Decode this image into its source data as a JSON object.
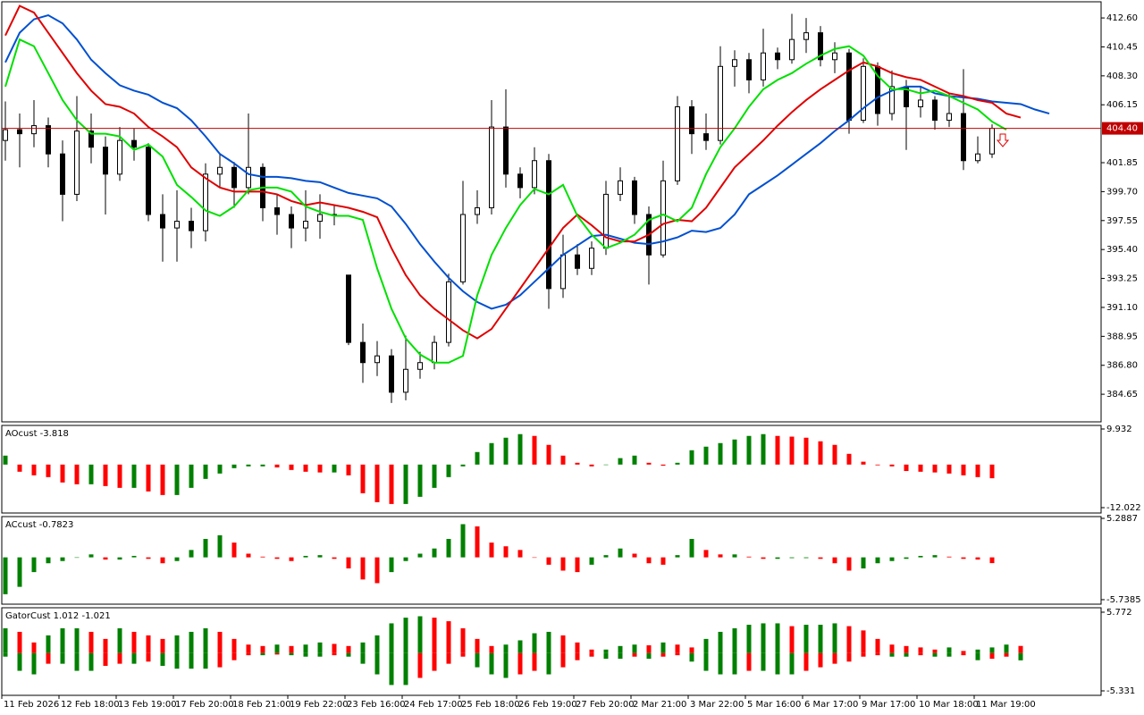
{
  "chart_data": [
    {
      "type": "candlestick",
      "open": [
        403.5,
        404.3,
        404,
        404.6,
        402.5,
        399.5,
        404.2,
        403,
        401,
        403.5,
        403,
        398,
        397,
        397.5,
        396.8,
        401,
        401.5,
        400,
        401.5,
        398.5,
        398,
        397,
        397.5,
        398,
        393.5,
        388.5,
        387,
        387.5,
        384.8,
        386.5,
        387,
        388.5,
        393,
        398,
        398.5,
        404.5,
        401,
        400,
        402,
        392.5,
        395,
        394,
        395.5,
        399.5,
        400.5,
        398,
        395,
        400.5,
        406,
        404,
        403.5,
        409,
        409.5,
        408,
        410,
        409.5,
        411,
        411.5,
        409.5,
        410,
        405,
        409,
        405.5,
        407.5,
        406,
        406.5,
        405,
        405.5,
        402,
        402.5
      ],
      "high": [
        406.4,
        405.5,
        406.5,
        405.2,
        403.5,
        406.8,
        405.5,
        403.8,
        404.5,
        404.4,
        403.3,
        399.5,
        399.8,
        398.5,
        401.8,
        402.5,
        401.9,
        405.5,
        401.8,
        399.5,
        398.6,
        399.8,
        399.5,
        398.7,
        393.5,
        389.9,
        388.6,
        388,
        389,
        387.8,
        389,
        393.6,
        400.5,
        399.8,
        406.5,
        407.3,
        401.5,
        403,
        402.5,
        396.5,
        395.8,
        396,
        400.5,
        401.5,
        400.8,
        398.6,
        402,
        406.8,
        406.5,
        405.5,
        410.5,
        410.2,
        410,
        411.8,
        410.4,
        412.9,
        412.6,
        412,
        410.8,
        410.3,
        409.6,
        409.3,
        408.7,
        408,
        407.5,
        406.8,
        407,
        408.8,
        403.8,
        404.7
      ],
      "low": [
        402,
        401.5,
        403,
        401.5,
        397.5,
        399,
        401.8,
        398,
        400.5,
        402,
        397.5,
        394.5,
        394.5,
        395.5,
        396,
        400,
        398.5,
        399.5,
        397.5,
        396.5,
        395.5,
        396,
        396.2,
        397.2,
        388.3,
        385.5,
        386,
        384,
        384.2,
        385.8,
        386.5,
        388.2,
        392.8,
        397.3,
        398,
        400,
        399.2,
        399.5,
        391,
        391.8,
        393.5,
        393.5,
        395,
        399,
        397.3,
        392.8,
        394.8,
        400.2,
        402.5,
        402.8,
        403.2,
        407.5,
        407,
        407.5,
        408.8,
        409.2,
        410,
        409,
        408.5,
        404,
        404.8,
        404.6,
        405,
        402.8,
        405.2,
        404.3,
        404.5,
        401.3,
        401.8,
        402.2
      ],
      "close": [
        404.3,
        404,
        404.6,
        402.5,
        399.5,
        404.2,
        403,
        401,
        403.5,
        403,
        398,
        397,
        397.5,
        396.8,
        401,
        401.5,
        400,
        401.5,
        398.5,
        398,
        397,
        397.5,
        398,
        398,
        388.5,
        387,
        387.5,
        384.8,
        386.5,
        387,
        388.5,
        393,
        398,
        398.5,
        404.5,
        401,
        400,
        402,
        392.5,
        395,
        394,
        395.5,
        399.5,
        400.5,
        398,
        395,
        400.5,
        406,
        404,
        403.5,
        409,
        409.5,
        408,
        410,
        409.5,
        411,
        411.5,
        409.5,
        410,
        405,
        409,
        405.5,
        407.5,
        406,
        406.5,
        405,
        405.5,
        402,
        402.5,
        404.4
      ],
      "series": [
        {
          "color": "#0050d0",
          "values": [
            409.3,
            411.5,
            412.5,
            412.8,
            412.2,
            411,
            409.5,
            408.5,
            407.6,
            407.2,
            406.9,
            406.3,
            405.9,
            405,
            403.8,
            402.5,
            401.8,
            401,
            400.8,
            400.8,
            400.7,
            400.5,
            400.4,
            400,
            399.6,
            399.4,
            399.2,
            398.6,
            397.3,
            395.8,
            394.5,
            393.3,
            392.3,
            391.5,
            391,
            391.3,
            392,
            393,
            394,
            395,
            395.7,
            396.4,
            396.5,
            396.2,
            395.9,
            395.8,
            396,
            396.3,
            396.8,
            396.7,
            397,
            398,
            399.5,
            400.2,
            400.9,
            401.7,
            402.5,
            403.3,
            404.2,
            405,
            405.9,
            406.7,
            407.2,
            407.5,
            407.5,
            407,
            406.8,
            406.7,
            406.6,
            406.4,
            406.3,
            406.2,
            405.8,
            405.5
          ]
        },
        {
          "color": "#e00000",
          "values": [
            411.3,
            413.5,
            413,
            411.5,
            410,
            408.5,
            407.2,
            406.2,
            406,
            405.5,
            404.5,
            403.8,
            403,
            401.5,
            400.7,
            400,
            399.7,
            399.7,
            399.7,
            399.5,
            399,
            398.7,
            398.9,
            398.7,
            398.5,
            398.2,
            397.8,
            395.5,
            393.5,
            392,
            391,
            390.2,
            389.4,
            388.8,
            389.5,
            391,
            392.5,
            394,
            395.5,
            397,
            398,
            397.2,
            396.3,
            396,
            396,
            396.5,
            397.3,
            397.6,
            397.5,
            398.5,
            400,
            401.5,
            402.5,
            403.5,
            404.6,
            405.6,
            406.5,
            407.3,
            408,
            408.7,
            409.3,
            409,
            408.5,
            408.2,
            408,
            407.5,
            407,
            406.8,
            406.5,
            406.3,
            405.5,
            405.2,
            null,
            null
          ]
        },
        {
          "color": "#00e000",
          "values": [
            407.5,
            411,
            410.5,
            408.5,
            406.5,
            405,
            404,
            404,
            403.8,
            402.8,
            403.2,
            402.3,
            400.2,
            399.3,
            398.3,
            397.9,
            398.6,
            399.8,
            400,
            400,
            399.7,
            398.6,
            398.2,
            397.9,
            397.9,
            397.6,
            394,
            391,
            388.8,
            387.6,
            387,
            387,
            387.5,
            392,
            395,
            397,
            398.7,
            399.9,
            399.5,
            400.2,
            397.9,
            396.5,
            395.5,
            395.9,
            396.5,
            397.6,
            398,
            397.5,
            398.5,
            401,
            403,
            404.4,
            406,
            407.3,
            408,
            408.5,
            409.2,
            409.8,
            410.3,
            410.5,
            409.8,
            408.3,
            407.3,
            407.3,
            407,
            407.2,
            406.8,
            406.3,
            405.8,
            404.9,
            404.3,
            null,
            null,
            null
          ]
        }
      ],
      "last_price": {
        "value": 404.4,
        "label": "404.40"
      },
      "ylim": [
        382.6,
        413.8
      ],
      "yticks": [
        {
          "value": 412.6,
          "label": "412.60"
        },
        410.45,
        {
          "value": 408.3,
          "label": "408.30"
        },
        406.15,
        401.85,
        {
          "value": 399.7,
          "label": "399.70"
        },
        397.55,
        {
          "value": 395.4,
          "label": "395.40"
        },
        393.25,
        {
          "value": 391.1,
          "label": "391.10"
        },
        388.95,
        {
          "value": 386.8,
          "label": "386.80"
        },
        384.65
      ],
      "xlim": [
        0,
        76.875
      ],
      "xticks": [
        {
          "value": 0,
          "label": "11 Feb 2026"
        },
        {
          "value": 4,
          "label": "12 Feb 18:00"
        },
        {
          "value": 8,
          "label": "13 Feb 19:00"
        },
        {
          "value": 12,
          "label": "17 Feb 20:00"
        },
        {
          "value": 16,
          "label": "18 Feb 21:00"
        },
        {
          "value": 20,
          "label": "19 Feb 22:00"
        },
        {
          "value": 24,
          "label": "23 Feb 16:00"
        },
        {
          "value": 28,
          "label": "24 Feb 17:00"
        },
        {
          "value": 32,
          "label": "25 Feb 18:00"
        },
        {
          "value": 36,
          "label": "26 Feb 19:00"
        },
        {
          "value": 40,
          "label": "27 Feb 20:00"
        },
        {
          "value": 44,
          "label": "2 Mar 21:00"
        },
        {
          "value": 48,
          "label": "3 Mar 22:00"
        },
        {
          "value": 52,
          "label": "5 Mar 16:00"
        },
        {
          "value": 56,
          "label": "6 Mar 17:00"
        },
        {
          "value": 60,
          "label": "9 Mar 17:00"
        },
        {
          "value": 64,
          "label": "10 Mar 18:00"
        },
        {
          "value": 68,
          "label": "11 Mar 19:00"
        }
      ]
    },
    {
      "type": "histogram",
      "title": "AOcust -3.818",
      "up_color": "#008000",
      "down_color": "#ff0000",
      "values": [
        2.5,
        -2,
        -3,
        -3.5,
        -5,
        -5.5,
        -5.5,
        -6,
        -6.5,
        -6.5,
        -7.5,
        -8.5,
        -8.5,
        -6.5,
        -4,
        -2.5,
        -1,
        -0.5,
        -0.5,
        -0.8,
        -1.5,
        -2,
        -2.2,
        -2.2,
        -3,
        -8,
        -10.5,
        -11,
        -11,
        -9,
        -6.5,
        -3.5,
        -0.5,
        3.5,
        6,
        7.5,
        8.5,
        8,
        5.5,
        2.5,
        0.5,
        -0.5,
        0,
        1.8,
        2.5,
        0.5,
        -0.3,
        0.5,
        4,
        5,
        6,
        7,
        8,
        8.5,
        8,
        7.8,
        7.5,
        6.5,
        5.5,
        3,
        0.8,
        -0.2,
        -0.5,
        -1.8,
        -2,
        -2.2,
        -2.5,
        -3,
        -3.5,
        -3.818
      ],
      "ylim": [
        -13.52,
        10.93
      ],
      "yticks": [
        9.932,
        -12.022
      ]
    },
    {
      "type": "histogram",
      "title": "ACcust -0.7823",
      "up_color": "#008000",
      "down_color": "#ff0000",
      "values": [
        -5,
        -4,
        -2,
        -0.8,
        -0.5,
        0,
        0.4,
        -0.3,
        -0.3,
        0.2,
        -0.2,
        -0.8,
        -0.5,
        1,
        2.5,
        3,
        2,
        0.5,
        0.1,
        -0.2,
        -0.5,
        0.2,
        0.3,
        -0.2,
        -1.5,
        -3,
        -3.5,
        -2,
        -0.5,
        0.5,
        1.2,
        2.5,
        4.5,
        4.2,
        2,
        1.5,
        1,
        0,
        -1,
        -1.8,
        -2,
        -1,
        0.3,
        1.2,
        0.5,
        -0.8,
        -1,
        0.3,
        2.5,
        1,
        0.4,
        0.4,
        0.1,
        -0.2,
        -0.2,
        -0.1,
        -0.1,
        -0.2,
        -0.8,
        -1.8,
        -1.5,
        -0.8,
        -0.5,
        -0.2,
        0.2,
        0.3,
        0.1,
        -0.2,
        -0.3,
        -0.7823
      ],
      "ylim": [
        -6.35,
        5.53
      ],
      "yticks": [
        5.2887,
        -5.7385
      ]
    },
    {
      "type": "gator",
      "title": "GatorCust 1.012 -1.021",
      "up_color": "#008000",
      "down_color": "#ff0000",
      "upper": [
        3.5,
        3,
        1.5,
        2.5,
        3.5,
        3.5,
        3,
        2,
        3.5,
        3,
        2.5,
        2,
        2.5,
        3,
        3.5,
        3,
        2,
        1.2,
        1,
        1.2,
        1,
        1.2,
        1.5,
        1.3,
        1,
        1.5,
        2.5,
        4.2,
        5,
        5.2,
        5,
        4.5,
        3.5,
        2,
        1,
        1.2,
        1.8,
        2.8,
        3,
        2.5,
        1.5,
        0.5,
        0.5,
        1,
        1.2,
        1.1,
        1.5,
        1.2,
        0.8,
        2,
        3,
        3.5,
        4,
        4.2,
        4.2,
        3.8,
        4,
        4,
        4.2,
        3.8,
        3.2,
        2,
        1.2,
        1,
        0.8,
        0.5,
        0.8,
        0.3,
        0.5,
        0.8,
        1.2,
        1.012
      ],
      "lower": [
        -0.5,
        -2.5,
        -3,
        -1.5,
        -1.5,
        -2.5,
        -2.5,
        -1.8,
        -1.5,
        -1.5,
        -1.2,
        -1.8,
        -2.2,
        -2.2,
        -2.2,
        -2,
        -1,
        -0.3,
        -0.3,
        -0.2,
        -0.3,
        -0.5,
        -0.5,
        -0.3,
        -0.5,
        -1.5,
        -3,
        -4.5,
        -4.5,
        -3.5,
        -2.5,
        -1.5,
        -0.5,
        -2,
        -3,
        -3.5,
        -3,
        -2.5,
        -3,
        -2,
        -1,
        -0.5,
        -0.8,
        -0.8,
        -0.5,
        -0.8,
        -0.5,
        -0.3,
        -1.2,
        -2.5,
        -3,
        -3,
        -2.5,
        -2.5,
        -3,
        -3,
        -2.5,
        -2,
        -1.5,
        -1.2,
        -0.5,
        -0.3,
        -0.5,
        -0.5,
        -0.3,
        -0.5,
        -0.5,
        -0.3,
        -1,
        -0.8,
        -0.5,
        -1.021
      ],
      "ylim": [
        -5.96,
        6.4
      ],
      "yticks": [
        5.772,
        -5.331
      ]
    }
  ]
}
